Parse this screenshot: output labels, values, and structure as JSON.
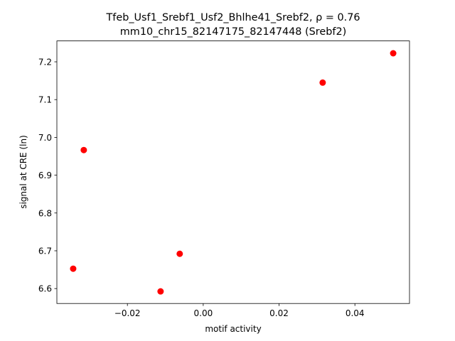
{
  "chart_data": {
    "type": "scatter",
    "title": "Tfeb_Usf1_Srebf1_Usf2_Bhlhe41_Srebf2, ρ = 0.76",
    "subtitle": "mm10_chr15_82147175_82147448 (Srebf2)",
    "x_label": "motif activity",
    "y_label": "signal at CRE (ln)",
    "series": [
      {
        "color": "#ff0000",
        "x": [
          -0.0343,
          -0.0315,
          -0.01125,
          -0.0062,
          0.0315,
          0.0501
        ],
        "values": [
          6.6526,
          6.9665,
          6.5925,
          6.692,
          7.145,
          7.2226
        ]
      }
    ],
    "xlim": [
      -0.0386,
      0.0544
    ],
    "ylim": [
      6.5605,
      7.2553
    ],
    "xticks": [
      {
        "value": -0.02,
        "label": "−0.02"
      },
      {
        "value": 0,
        "label": "0.00"
      },
      {
        "value": 0.02,
        "label": "0.02"
      },
      {
        "value": 0.04,
        "label": "0.04"
      }
    ],
    "yticks": [
      6.6,
      6.7,
      6.8,
      6.9,
      {
        "value": 7.0,
        "label": "7.0"
      },
      7.1,
      7.2
    ],
    "grid": false
  }
}
